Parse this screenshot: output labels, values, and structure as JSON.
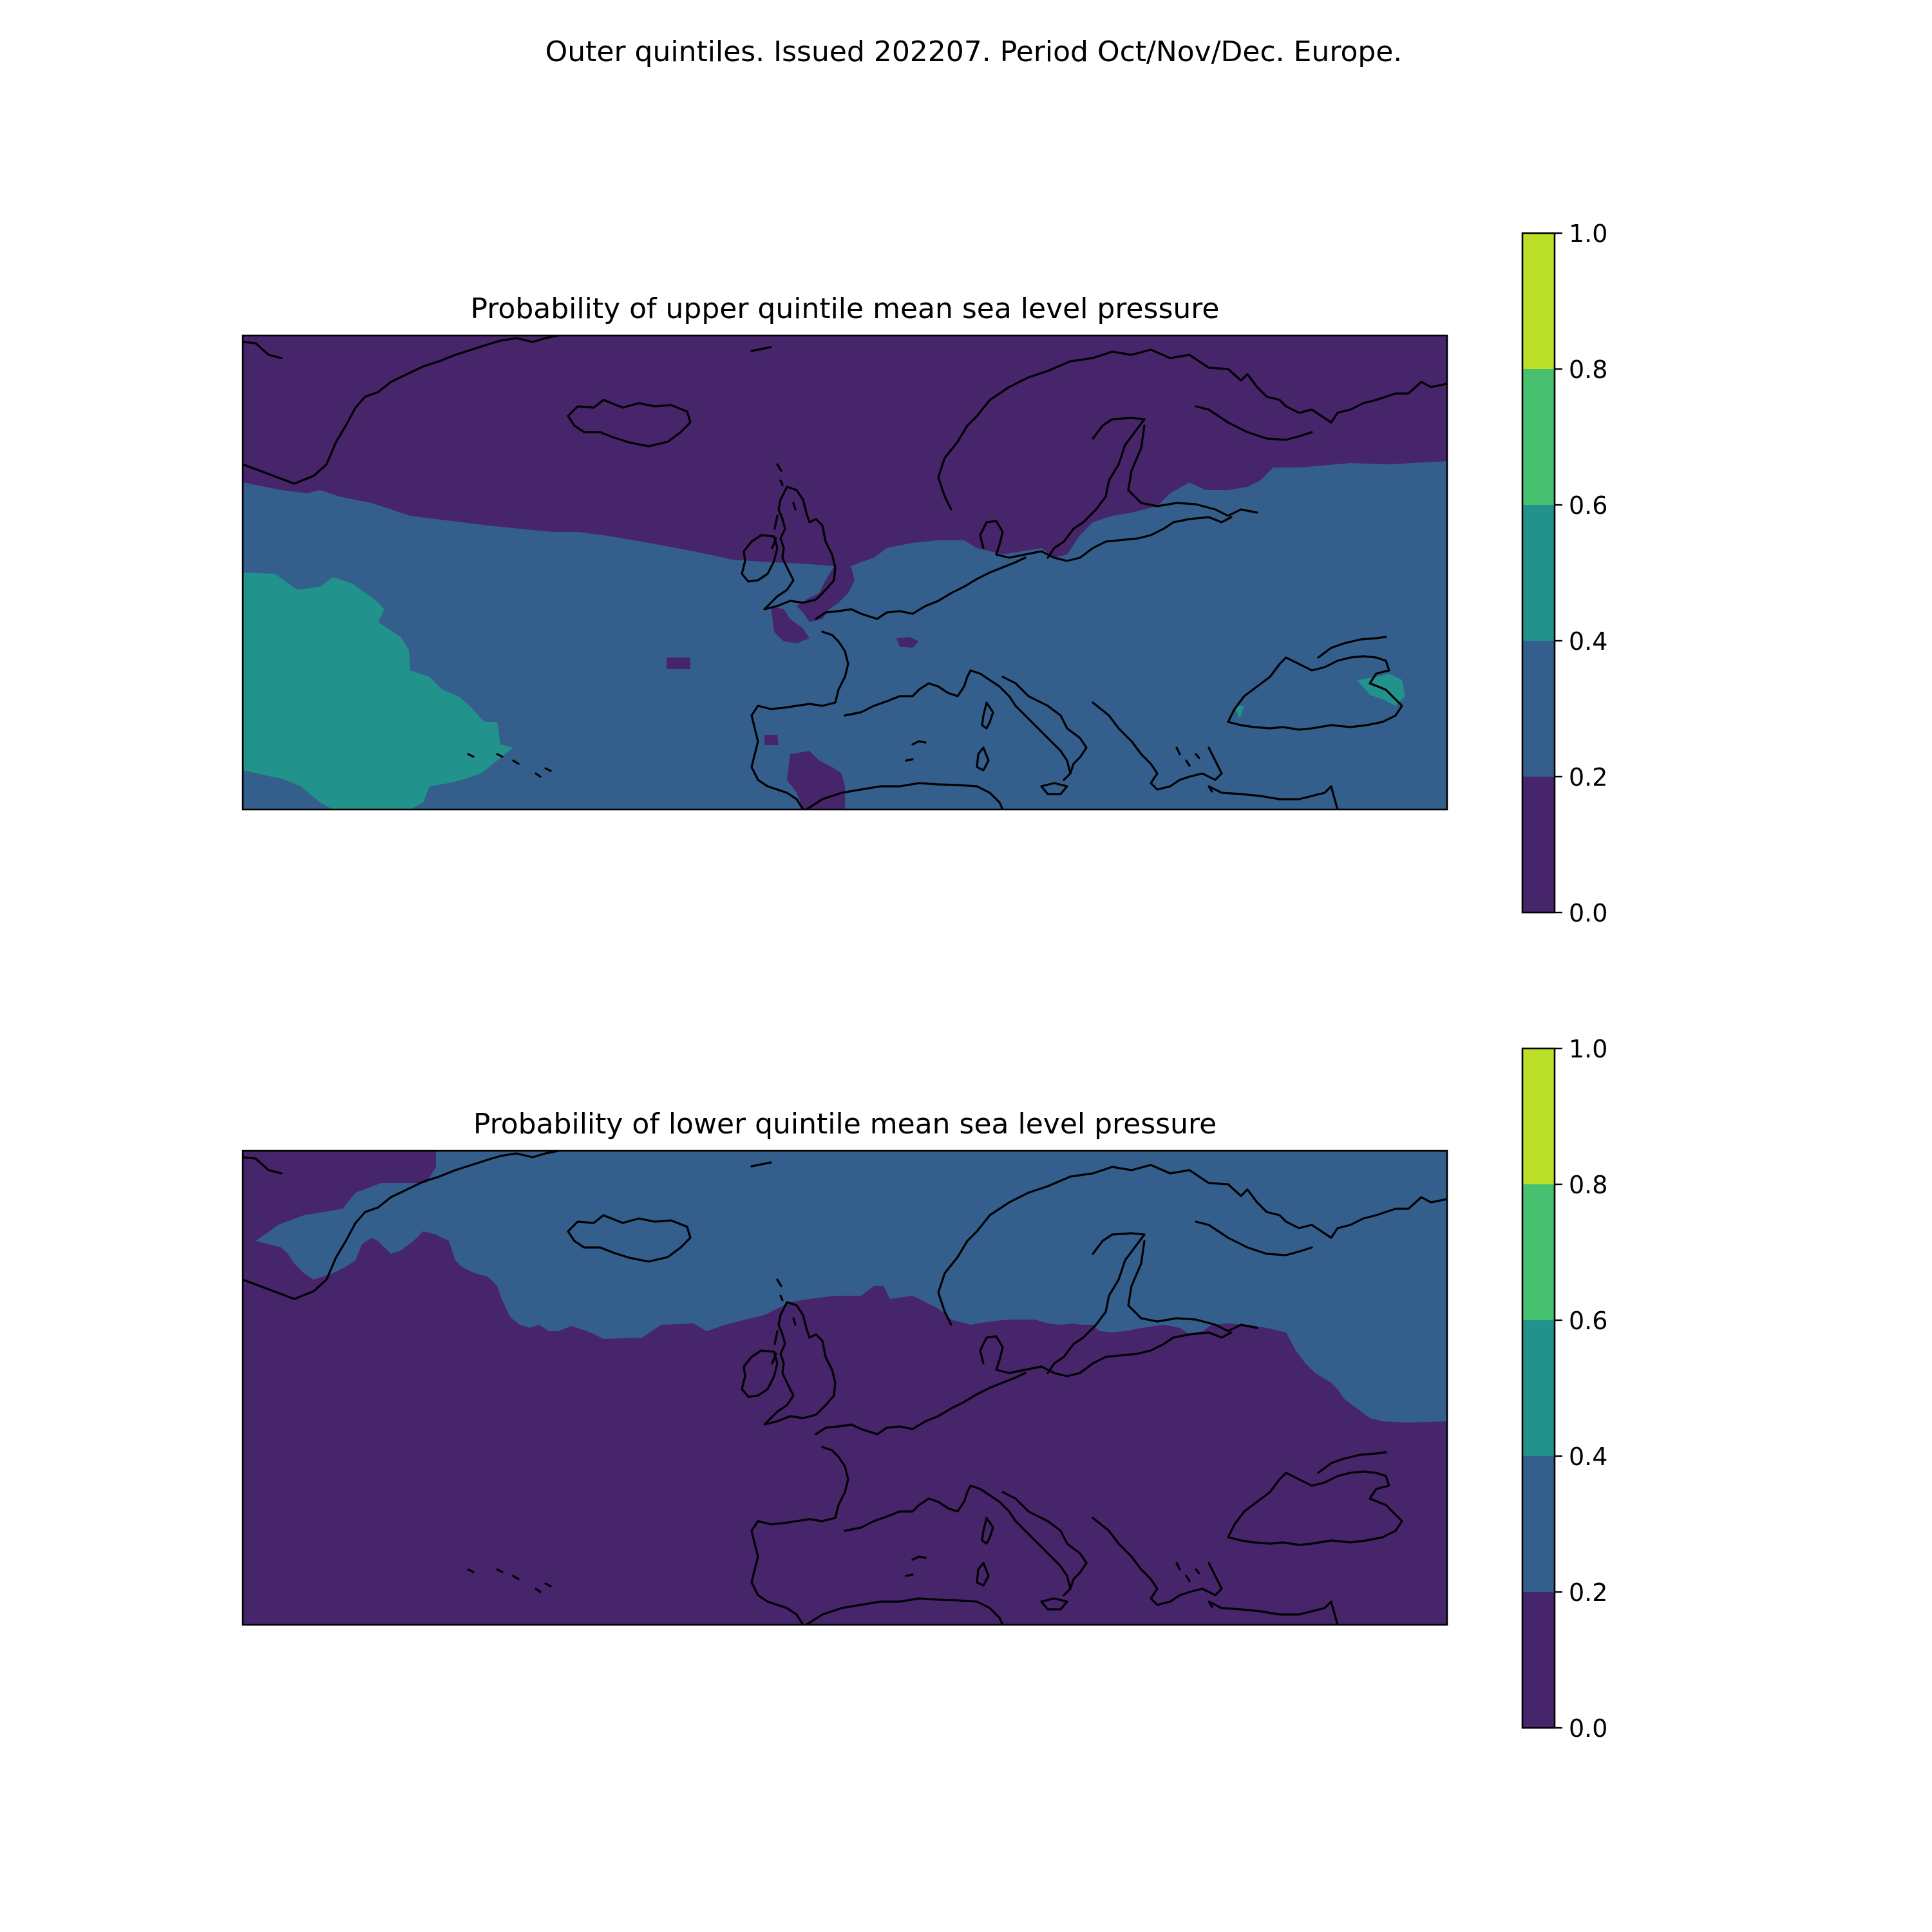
{
  "figure_title": "Outer quintiles. Issued 202207. Period Oct/Nov/Dec. Europe.",
  "colormap": {
    "name": "viridis",
    "bins": [
      {
        "from": 0.0,
        "to": 0.2,
        "color": "#46256b"
      },
      {
        "from": 0.2,
        "to": 0.4,
        "color": "#345f8d"
      },
      {
        "from": 0.4,
        "to": 0.6,
        "color": "#21928c"
      },
      {
        "from": 0.6,
        "to": 0.8,
        "color": "#47c06f"
      },
      {
        "from": 0.8,
        "to": 1.0,
        "color": "#bcdf27"
      }
    ],
    "tick_labels": [
      "0.0",
      "0.2",
      "0.4",
      "0.6",
      "0.8",
      "1.0"
    ]
  },
  "chart_data": [
    {
      "type": "heatmap",
      "title": "Probability of upper quintile mean sea level pressure",
      "variable": "mean sea level pressure",
      "quintile": "upper",
      "region": "Europe",
      "value_range": [
        0.0,
        1.0
      ],
      "dominant_bin": "0.2–0.4",
      "regions": [
        {
          "name": "Arctic / Greenland Sea / Norwegian Sea / Scandinavia",
          "bin": "0.0–0.2"
        },
        {
          "name": "Central Atlantic / W & S Europe / Mediterranean / E Europe",
          "bin": "0.2–0.4"
        },
        {
          "name": "Subtropical Atlantic west of Iberia",
          "bin": "0.4–0.6"
        },
        {
          "name": "Eastern Black Sea coast",
          "bin": "0.4–0.6"
        },
        {
          "name": "SW Iberia / North Sea / English Channel patches",
          "bin": "0.0–0.2"
        }
      ]
    },
    {
      "type": "heatmap",
      "title": "Probability of lower quintile mean sea level pressure",
      "variable": "mean sea level pressure",
      "quintile": "lower",
      "region": "Europe",
      "value_range": [
        0.0,
        1.0
      ],
      "dominant_bin": "0.0–0.2",
      "regions": [
        {
          "name": "Greenland / Iceland / Norwegian Sea / Scandinavia / NE Russia",
          "bin": "0.2–0.4"
        },
        {
          "name": "Atlantic / British Isles / Central & Southern Europe / Mediterranean",
          "bin": "0.0–0.2"
        },
        {
          "name": "Far NW corner (Greenland interior)",
          "bin": "0.0–0.2"
        }
      ]
    }
  ]
}
